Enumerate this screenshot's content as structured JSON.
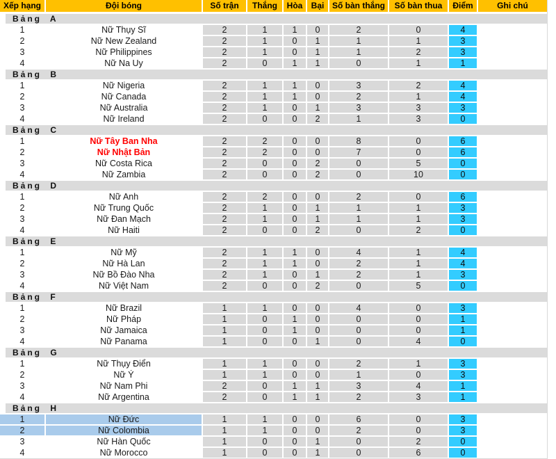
{
  "table": {
    "columns": [
      "Xếp hạng",
      "Đội bóng",
      "Số trận",
      "Thắng",
      "Hòa",
      "Bại",
      "Số bàn thắng",
      "Số bàn thua",
      "Điểm",
      "Ghi chú"
    ]
  },
  "colors": {
    "header_bg": "#FFC000",
    "group_band_bg": "#DBDBDB",
    "stat_cell_bg": "#D9D9D9",
    "points_cell_bg": "#33CCFF",
    "highlight_row_bg": "#A9CBEB",
    "red_team_text": "#FF0000"
  },
  "groups": [
    {
      "label": "Bảng A",
      "rows": [
        {
          "rank": "1",
          "team": "Nữ Thụy Sĩ",
          "mp": "2",
          "w": "1",
          "d": "1",
          "l": "0",
          "gf": "2",
          "ga": "0",
          "pts": "4",
          "note": ""
        },
        {
          "rank": "2",
          "team": "Nữ New Zealand",
          "mp": "2",
          "w": "1",
          "d": "0",
          "l": "1",
          "gf": "1",
          "ga": "1",
          "pts": "3",
          "note": ""
        },
        {
          "rank": "3",
          "team": "Nữ Philippines",
          "mp": "2",
          "w": "1",
          "d": "0",
          "l": "1",
          "gf": "1",
          "ga": "2",
          "pts": "3",
          "note": ""
        },
        {
          "rank": "4",
          "team": "Nữ Na Uy",
          "mp": "2",
          "w": "0",
          "d": "1",
          "l": "1",
          "gf": "0",
          "ga": "1",
          "pts": "1",
          "note": ""
        }
      ]
    },
    {
      "label": "Bảng B",
      "rows": [
        {
          "rank": "1",
          "team": "Nữ Nigeria",
          "mp": "2",
          "w": "1",
          "d": "1",
          "l": "0",
          "gf": "3",
          "ga": "2",
          "pts": "4",
          "note": ""
        },
        {
          "rank": "2",
          "team": "Nữ Canada",
          "mp": "2",
          "w": "1",
          "d": "1",
          "l": "0",
          "gf": "2",
          "ga": "1",
          "pts": "4",
          "note": ""
        },
        {
          "rank": "3",
          "team": "Nữ Australia",
          "mp": "2",
          "w": "1",
          "d": "0",
          "l": "1",
          "gf": "3",
          "ga": "3",
          "pts": "3",
          "note": ""
        },
        {
          "rank": "4",
          "team": "Nữ Ireland",
          "mp": "2",
          "w": "0",
          "d": "0",
          "l": "2",
          "gf": "1",
          "ga": "3",
          "pts": "0",
          "note": ""
        }
      ]
    },
    {
      "label": "Bảng C",
      "rows": [
        {
          "rank": "1",
          "team": "Nữ Tây Ban Nha",
          "team_style": "red",
          "mp": "2",
          "w": "2",
          "d": "0",
          "l": "0",
          "gf": "8",
          "ga": "0",
          "pts": "6",
          "note": ""
        },
        {
          "rank": "2",
          "team": "Nữ Nhật Bản",
          "team_style": "red",
          "mp": "2",
          "w": "2",
          "d": "0",
          "l": "0",
          "gf": "7",
          "ga": "0",
          "pts": "6",
          "note": ""
        },
        {
          "rank": "3",
          "team": "Nữ Costa Rica",
          "mp": "2",
          "w": "0",
          "d": "0",
          "l": "2",
          "gf": "0",
          "ga": "5",
          "pts": "0",
          "note": ""
        },
        {
          "rank": "4",
          "team": "Nữ Zambia",
          "mp": "2",
          "w": "0",
          "d": "0",
          "l": "2",
          "gf": "0",
          "ga": "10",
          "pts": "0",
          "note": ""
        }
      ]
    },
    {
      "label": "Bảng D",
      "rows": [
        {
          "rank": "1",
          "team": "Nữ Anh",
          "mp": "2",
          "w": "2",
          "d": "0",
          "l": "0",
          "gf": "2",
          "ga": "0",
          "pts": "6",
          "note": ""
        },
        {
          "rank": "2",
          "team": "Nữ Trung Quốc",
          "mp": "2",
          "w": "1",
          "d": "0",
          "l": "1",
          "gf": "1",
          "ga": "1",
          "pts": "3",
          "note": ""
        },
        {
          "rank": "3",
          "team": "Nữ Đan Mạch",
          "mp": "2",
          "w": "1",
          "d": "0",
          "l": "1",
          "gf": "1",
          "ga": "1",
          "pts": "3",
          "note": ""
        },
        {
          "rank": "4",
          "team": "Nữ Haiti",
          "mp": "2",
          "w": "0",
          "d": "0",
          "l": "2",
          "gf": "0",
          "ga": "2",
          "pts": "0",
          "note": ""
        }
      ]
    },
    {
      "label": "Bảng E",
      "rows": [
        {
          "rank": "1",
          "team": "Nữ Mỹ",
          "mp": "2",
          "w": "1",
          "d": "1",
          "l": "0",
          "gf": "4",
          "ga": "1",
          "pts": "4",
          "note": ""
        },
        {
          "rank": "2",
          "team": "Nữ Hà Lan",
          "mp": "2",
          "w": "1",
          "d": "1",
          "l": "0",
          "gf": "2",
          "ga": "1",
          "pts": "4",
          "note": ""
        },
        {
          "rank": "3",
          "team": "Nữ Bồ Đào Nha",
          "mp": "2",
          "w": "1",
          "d": "0",
          "l": "1",
          "gf": "2",
          "ga": "1",
          "pts": "3",
          "note": ""
        },
        {
          "rank": "4",
          "team": "Nữ Việt Nam",
          "mp": "2",
          "w": "0",
          "d": "0",
          "l": "2",
          "gf": "0",
          "ga": "5",
          "pts": "0",
          "note": ""
        }
      ]
    },
    {
      "label": "Bảng F",
      "rows": [
        {
          "rank": "1",
          "team": "Nữ Brazil",
          "mp": "1",
          "w": "1",
          "d": "0",
          "l": "0",
          "gf": "4",
          "ga": "0",
          "pts": "3",
          "note": ""
        },
        {
          "rank": "2",
          "team": "Nữ Pháp",
          "mp": "1",
          "w": "0",
          "d": "1",
          "l": "0",
          "gf": "0",
          "ga": "0",
          "pts": "1",
          "note": ""
        },
        {
          "rank": "3",
          "team": "Nữ Jamaica",
          "mp": "1",
          "w": "0",
          "d": "1",
          "l": "0",
          "gf": "0",
          "ga": "0",
          "pts": "1",
          "note": ""
        },
        {
          "rank": "4",
          "team": "Nữ Panama",
          "mp": "1",
          "w": "0",
          "d": "0",
          "l": "1",
          "gf": "0",
          "ga": "4",
          "pts": "0",
          "note": ""
        }
      ]
    },
    {
      "label": "Bảng G",
      "rows": [
        {
          "rank": "1",
          "team": "Nữ Thụy Điển",
          "mp": "1",
          "w": "1",
          "d": "0",
          "l": "0",
          "gf": "2",
          "ga": "1",
          "pts": "3",
          "note": ""
        },
        {
          "rank": "2",
          "team": "Nữ Ý",
          "mp": "1",
          "w": "1",
          "d": "0",
          "l": "0",
          "gf": "1",
          "ga": "0",
          "pts": "3",
          "note": ""
        },
        {
          "rank": "3",
          "team": "Nữ Nam Phi",
          "mp": "2",
          "w": "0",
          "d": "1",
          "l": "1",
          "gf": "3",
          "ga": "4",
          "pts": "1",
          "note": ""
        },
        {
          "rank": "4",
          "team": "Nữ Argentina",
          "mp": "2",
          "w": "0",
          "d": "1",
          "l": "1",
          "gf": "2",
          "ga": "3",
          "pts": "1",
          "note": ""
        }
      ]
    },
    {
      "label": "Bảng H",
      "rows": [
        {
          "rank": "1",
          "team": "Nữ Đức",
          "row_style": "highlight",
          "mp": "1",
          "w": "1",
          "d": "0",
          "l": "0",
          "gf": "6",
          "ga": "0",
          "pts": "3",
          "note": ""
        },
        {
          "rank": "2",
          "team": "Nữ Colombia",
          "row_style": "highlight",
          "mp": "1",
          "w": "1",
          "d": "0",
          "l": "0",
          "gf": "2",
          "ga": "0",
          "pts": "3",
          "note": ""
        },
        {
          "rank": "3",
          "team": "Nữ Hàn Quốc",
          "mp": "1",
          "w": "0",
          "d": "0",
          "l": "1",
          "gf": "0",
          "ga": "2",
          "pts": "0",
          "note": ""
        },
        {
          "rank": "4",
          "team": "Nữ Morocco",
          "mp": "1",
          "w": "0",
          "d": "0",
          "l": "1",
          "gf": "0",
          "ga": "6",
          "pts": "0",
          "note": ""
        }
      ]
    }
  ]
}
